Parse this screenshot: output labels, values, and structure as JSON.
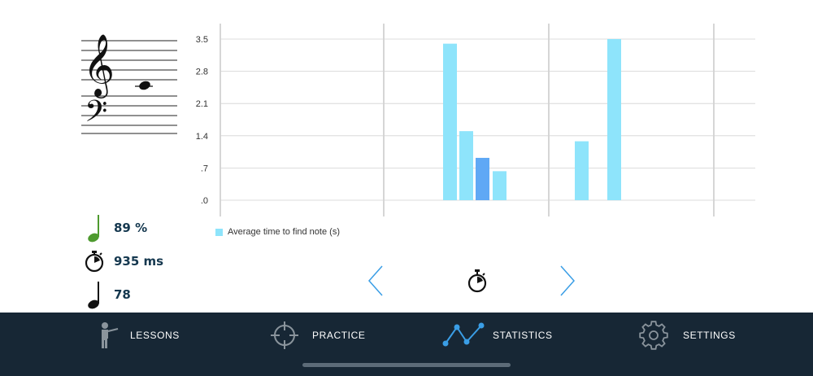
{
  "stats": {
    "accuracy": "89 %",
    "time": "935 ms",
    "count": "78"
  },
  "chart_data": {
    "type": "bar",
    "y_ticks": [
      "3.5",
      "2.8",
      "2.1",
      "1.4",
      ".7",
      ".0"
    ],
    "ylim": [
      0,
      3.5
    ],
    "legend": "Average time to find note (s)",
    "grid": true,
    "bars": [
      {
        "value": 3.4,
        "highlight": false
      },
      {
        "value": 1.5,
        "highlight": false
      },
      {
        "value": 0.92,
        "highlight": true
      },
      {
        "value": 0.63,
        "highlight": false
      },
      {
        "value": 1.28,
        "highlight": false
      },
      {
        "value": 3.5,
        "highlight": false
      }
    ]
  },
  "tabs": [
    {
      "label": "LESSONS",
      "icon": "teacher-icon"
    },
    {
      "label": "PRACTICE",
      "icon": "crosshair-icon"
    },
    {
      "label": "STATISTICS",
      "icon": "line-chart-icon"
    },
    {
      "label": "SETTINGS",
      "icon": "gear-icon"
    }
  ],
  "colors": {
    "tabbar": "#172735",
    "bar": "#8ee4fb",
    "bar_highlight": "#5fa8f5",
    "accent": "#3a9ee6",
    "note_green": "#4e9a2f"
  }
}
